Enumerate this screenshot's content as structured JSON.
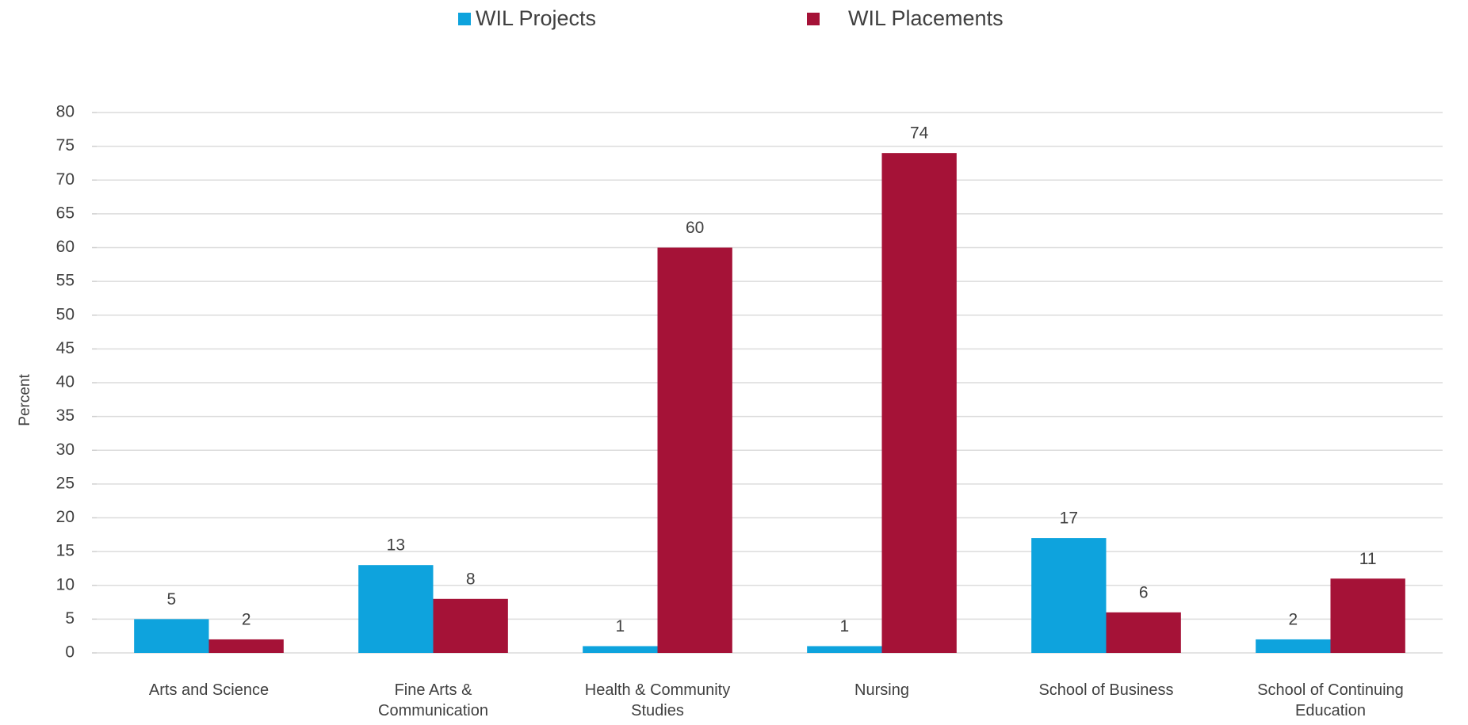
{
  "chart_data": {
    "type": "bar",
    "y_label": "Percent",
    "categories": [
      "Arts and Science",
      "Fine Arts & Communication",
      "Health & Community Studies",
      "Nursing",
      "School of Business",
      "School of Continuing Education"
    ],
    "series": [
      {
        "name": "WIL Projects",
        "color": "#0ea3dd",
        "values": [
          5,
          13,
          1,
          1,
          17,
          2
        ]
      },
      {
        "name": "WIL Placements",
        "color": "#a51237",
        "values": [
          2,
          8,
          60,
          74,
          6,
          11
        ]
      }
    ],
    "ylim": [
      0,
      80
    ],
    "yticks": [
      0,
      5,
      10,
      15,
      20,
      25,
      30,
      35,
      40,
      45,
      50,
      55,
      60,
      65,
      70,
      75,
      80
    ],
    "grid": true,
    "legend": "top"
  }
}
